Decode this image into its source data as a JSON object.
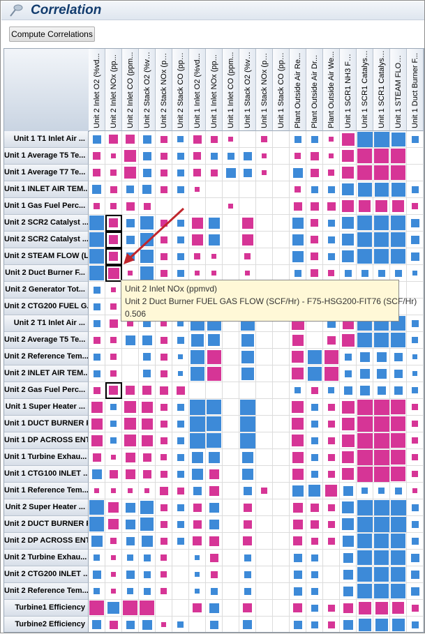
{
  "window": {
    "title": "Correlation",
    "title_icon": "pin-icon"
  },
  "toolbar": {
    "compute_label": "Compute Correlations"
  },
  "colors": {
    "positive": "#d63596",
    "negative": "#3d8ad8",
    "selection": "#000000",
    "arrow": "#c0262c",
    "tooltip_bg": "#fff8d7"
  },
  "columns": [
    "Unit 2 Inlet O2 (%vd...",
    "Unit 2 Inlet NOx (pp...",
    "Unit 2 Inlet CO (ppm...",
    "Unit 2 Stack O2 (%vd...",
    "Unit 2 Stack NOx (pp...",
    "Unit 2 Stack CO (ppm...",
    "Unit 1 Inlet O2 (%vd...",
    "Unit 1 Inlet NOx (pp...",
    "Unit 1 Inlet CO (ppm...",
    "Unit 1 Stack O2 (%vd...",
    "Unit 1 Stack NOx (pp...",
    "Unit 1 Stack CO (ppm...",
    "Plant Outside Air Re...",
    "Plant Outside Air Dr...",
    "Plant Outside Air We...",
    "Unit 1 SCR1 NH3 FLOW...",
    "Unit 1 SCR1 Catalyst...",
    "Unit 1 SCR1 Catalyst...",
    "Unit 1 STEAM FLOW (L...",
    "Unit 1 Duct Burner F..."
  ],
  "rows": [
    "Unit 1 T1 Inlet Air ...",
    "Unit 1 Average T5 Te...",
    "Unit 1 Average T7 Te...",
    "Unit 1 INLET AIR TEM...",
    "Unit 1 Gas Fuel Perc...",
    "Unit 2 SCR2 Catalyst ...",
    "Unit 2 SCR2 Catalyst ...",
    "Unit 2 STEAM FLOW (L...",
    "Unit 2 Duct Burner F...",
    "Unit 2 Generator Tot...",
    "Unit 2 CTG200 FUEL G...",
    "Unit 2 T1 Inlet Air ...",
    "Unit 2 Average T5 Te...",
    "Unit 2 Reference Tem...",
    "Unit 2 INLET AIR TEM...",
    "Unit 2 Gas Fuel Perc...",
    "Unit 1 Super Heater ...",
    "Unit 1 DUCT BURNER F...",
    "Unit 1 DP ACROSS ENT...",
    "Unit 1 Turbine Exhau...",
    "Unit 1 CTG100 INLET ...",
    "Unit 1 Reference Tem...",
    "Unit 2 Super Heater ...",
    "Unit 2 DUCT BURNER F...",
    "Unit 2 DP ACROSS ENT...",
    "Unit 2 Turbine Exhau...",
    "Unit 2 CTG200 INLET ...",
    "Unit 2 Reference Tem...",
    "Turbine1 Efficiency",
    "Turbine2 Efficiency"
  ],
  "matrix": [
    [
      -0.3,
      0.35,
      0.35,
      -0.3,
      0.2,
      -0.15,
      0.3,
      0.2,
      0.1,
      0,
      0.15,
      0,
      -0.2,
      -0.2,
      0.1,
      0.7,
      -1,
      -1,
      -0.8,
      -0.2
    ],
    [
      0.25,
      0.1,
      0.6,
      -0.3,
      0.2,
      -0.2,
      0.25,
      -0.2,
      -0.2,
      -0.3,
      0.1,
      0,
      0.15,
      0.3,
      0.1,
      0.6,
      0.9,
      0.9,
      0.9,
      0
    ],
    [
      0.25,
      0.15,
      0.6,
      -0.3,
      0.2,
      -0.2,
      0.25,
      0.2,
      -0.4,
      -0.3,
      0.1,
      0,
      -0.4,
      0.3,
      0.15,
      0.6,
      0.9,
      0.9,
      0.9,
      0
    ],
    [
      -0.35,
      0.2,
      -0.25,
      -0.35,
      0.2,
      -0.2,
      0.1,
      0,
      0,
      0,
      0,
      0,
      0.15,
      -0.2,
      -0.2,
      -0.6,
      -0.8,
      -0.8,
      -0.8,
      -0.2
    ],
    [
      0.15,
      0.15,
      0.3,
      0.2,
      0,
      0,
      0,
      0,
      0.1,
      0,
      0,
      0,
      0.3,
      0.3,
      0.3,
      0.6,
      0.6,
      0.6,
      0.6,
      0.15
    ],
    [
      -0.95,
      0.35,
      -0.3,
      -0.75,
      0.2,
      -0.2,
      0.55,
      -0.5,
      0,
      0.55,
      0,
      0,
      -0.5,
      0.25,
      -0.2,
      -0.6,
      -0.9,
      -0.9,
      -0.9,
      -0.3
    ],
    [
      -0.95,
      0.35,
      -0.3,
      -0.75,
      0.2,
      -0.2,
      0.55,
      -0.5,
      0,
      0.55,
      0,
      0,
      -0.5,
      0.25,
      -0.2,
      -0.6,
      -0.9,
      -0.9,
      -0.9,
      -0.3
    ],
    [
      -0.95,
      0.35,
      -0.3,
      -0.75,
      0.2,
      -0.2,
      0.15,
      0.1,
      0,
      0.15,
      0,
      0,
      -0.5,
      0.25,
      -0.2,
      -0.6,
      -0.9,
      -0.9,
      -0.9,
      -0.3
    ],
    [
      -0.95,
      0.506,
      0.1,
      -0.75,
      0.2,
      -0.2,
      0.1,
      0.1,
      0,
      0.1,
      0,
      0,
      -0.2,
      0.25,
      0.15,
      -0.2,
      -0.2,
      -0.2,
      -0.2,
      -0.1
    ],
    [
      -0.2,
      0.1,
      0,
      0,
      0,
      0,
      0,
      0,
      0,
      0,
      0,
      0,
      0,
      0,
      0,
      -0.5,
      0,
      0,
      0,
      0
    ],
    [
      -0.2,
      0.15,
      0,
      0,
      0,
      0,
      0,
      0,
      0,
      0,
      0,
      0,
      0,
      0,
      0,
      -0.6,
      0,
      0,
      0,
      0
    ],
    [
      -0.2,
      0.3,
      0.15,
      -0.25,
      0.15,
      -0.15,
      -0.8,
      -0.8,
      0,
      -0.8,
      0,
      0,
      0.65,
      0,
      -0.3,
      0.5,
      -0.9,
      -0.9,
      -0.9,
      -0.2
    ],
    [
      0.2,
      0.15,
      -0.4,
      -0.4,
      0.2,
      -0.2,
      -0.7,
      -0.6,
      0,
      -0.7,
      0,
      0,
      0.5,
      0,
      0.3,
      0.7,
      -0.9,
      -0.9,
      -0.9,
      -0.15
    ],
    [
      -0.2,
      0.15,
      0,
      -0.25,
      0.2,
      -0.1,
      -0.8,
      0.85,
      0,
      -0.7,
      0,
      0,
      0.6,
      -0.8,
      0.8,
      -0.2,
      -0.4,
      -0.4,
      -0.3,
      -0.1
    ],
    [
      -0.2,
      0.15,
      0,
      -0.25,
      0.2,
      -0.1,
      -0.8,
      0.85,
      0,
      -0.7,
      0,
      0,
      0.6,
      -0.8,
      0.8,
      -0.2,
      -0.4,
      -0.4,
      -0.3,
      -0.1
    ],
    [
      0.2,
      0.35,
      0.35,
      0.35,
      0.3,
      0.3,
      0,
      0,
      0,
      0,
      0,
      0,
      -0.15,
      0.2,
      -0.15,
      -0.3,
      -0.4,
      -0.3,
      -0.3,
      -0.15
    ],
    [
      0.5,
      -0.15,
      0.6,
      0.5,
      0.2,
      -0.2,
      -1,
      -0.9,
      0,
      -1,
      0,
      0,
      0.6,
      -0.2,
      0.2,
      0.7,
      1,
      1,
      0.9,
      0.15
    ],
    [
      0.5,
      -0.15,
      0.6,
      0.5,
      0.2,
      -0.2,
      -1,
      -0.9,
      0,
      -1,
      0,
      0,
      0.6,
      -0.2,
      0.2,
      0.7,
      1,
      1,
      0.9,
      0.15
    ],
    [
      0.5,
      -0.15,
      0.6,
      0.5,
      0.2,
      -0.2,
      -1,
      -0.9,
      0,
      -1,
      0,
      0,
      0.6,
      -0.2,
      0.2,
      0.7,
      1,
      1,
      0.9,
      0.15
    ],
    [
      0.3,
      0.1,
      0.4,
      0.3,
      0.15,
      -0.2,
      -0.5,
      -0.5,
      0,
      -0.5,
      0,
      0,
      0.5,
      -0.2,
      0.2,
      0.6,
      1,
      1,
      0.9,
      0.15
    ],
    [
      -0.4,
      0.3,
      0.4,
      0.3,
      0.2,
      -0.2,
      -0.5,
      0.4,
      0,
      -0.5,
      0,
      0,
      0.5,
      -0.2,
      0.2,
      0.6,
      1,
      1,
      0.9,
      0.15
    ],
    [
      0.1,
      0.1,
      0.1,
      0.1,
      0.3,
      0.2,
      -0.3,
      0.4,
      0,
      -0.3,
      0.15,
      0,
      -0.5,
      -0.6,
      0.6,
      -0.4,
      -0.15,
      -0.15,
      -0.2,
      0.1
    ],
    [
      -0.95,
      0.45,
      -0.4,
      -0.75,
      0.2,
      -0.2,
      0.3,
      -0.4,
      0,
      0.3,
      0,
      0,
      0.4,
      0.3,
      0.2,
      -0.6,
      -1,
      -1,
      -1,
      -0.2
    ],
    [
      -0.95,
      0.45,
      -0.4,
      -0.75,
      0.2,
      -0.2,
      0.3,
      -0.4,
      0,
      0.3,
      0,
      0,
      0.4,
      0.3,
      0.2,
      -0.6,
      -1,
      -1,
      -1,
      -0.2
    ],
    [
      -0.5,
      0.15,
      -0.3,
      -0.5,
      0.2,
      -0.2,
      0.35,
      0.4,
      0,
      0.35,
      0,
      0,
      0.35,
      0.2,
      0.2,
      -0.5,
      -0.9,
      -0.9,
      -0.9,
      -0.2
    ],
    [
      -0.15,
      0.1,
      -0.15,
      -0.2,
      0.15,
      0,
      -0.1,
      0.3,
      0,
      -0.2,
      0,
      0,
      -0.3,
      -0.2,
      0,
      -0.4,
      -0.9,
      -0.9,
      -0.9,
      -0.3
    ],
    [
      -0.3,
      0.1,
      -0.3,
      -0.2,
      0.15,
      0,
      -0.1,
      0.2,
      0,
      -0.2,
      0,
      0,
      -0.3,
      -0.2,
      0,
      -0.4,
      -0.9,
      -0.9,
      -0.9,
      -0.3
    ],
    [
      -0.15,
      0.1,
      -0.15,
      -0.2,
      0.15,
      0,
      -0.1,
      -0.2,
      0,
      -0.2,
      0,
      0,
      -0.3,
      -0.2,
      0,
      -0.4,
      -0.9,
      -0.9,
      -0.9,
      -0.3
    ],
    [
      0.9,
      -0.6,
      0.9,
      0.9,
      0,
      0,
      0.35,
      -0.4,
      0,
      0.35,
      0,
      0,
      0.35,
      -0.2,
      0.2,
      0.4,
      0.7,
      0.7,
      0.6,
      0.2
    ],
    [
      -0.35,
      0.3,
      -0.3,
      -0.4,
      0.1,
      -0.15,
      0,
      -0.3,
      0,
      -0.35,
      0,
      0,
      -0.3,
      -0.2,
      0.2,
      -0.4,
      -0.7,
      -0.7,
      -0.7,
      -0.2
    ]
  ],
  "selection": [
    [
      5,
      1
    ],
    [
      6,
      1
    ],
    [
      7,
      1
    ],
    [
      8,
      1
    ],
    [
      15,
      1
    ]
  ],
  "tooltip": {
    "line1": "Unit 2 Inlet NOx (ppmvd)",
    "line2": "Unit 2 Duct Burner FUEL GAS FLOW (SCF/Hr) - F75-HSG200-FIT76 (SCF/Hr)",
    "line3": "0.506"
  }
}
